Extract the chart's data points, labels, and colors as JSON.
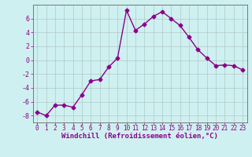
{
  "x": [
    0,
    1,
    2,
    3,
    4,
    5,
    6,
    7,
    8,
    9,
    10,
    11,
    12,
    13,
    14,
    15,
    16,
    17,
    18,
    19,
    20,
    21,
    22,
    23
  ],
  "y": [
    -7.5,
    -8.0,
    -6.5,
    -6.5,
    -6.8,
    -5.0,
    -3.0,
    -2.8,
    -1.0,
    0.3,
    7.2,
    4.3,
    5.2,
    6.3,
    7.0,
    6.0,
    5.0,
    3.3,
    1.5,
    0.3,
    -0.8,
    -0.7,
    -0.8,
    -1.4
  ],
  "line_color": "#8B008B",
  "marker": "D",
  "marker_size": 2.5,
  "bg_color": "#cff0f0",
  "grid_color": "#b0c8c8",
  "xlabel": "Windchill (Refroidissement éolien,°C)",
  "ylim": [
    -9,
    8
  ],
  "xlim": [
    -0.5,
    23.5
  ],
  "yticks": [
    -8,
    -6,
    -4,
    -2,
    0,
    2,
    4,
    6
  ],
  "xticks": [
    0,
    1,
    2,
    3,
    4,
    5,
    6,
    7,
    8,
    9,
    10,
    11,
    12,
    13,
    14,
    15,
    16,
    17,
    18,
    19,
    20,
    21,
    22,
    23
  ],
  "xlabel_fontsize": 6.5,
  "tick_fontsize": 5.5,
  "line_width": 1.0,
  "spine_color": "#777777"
}
